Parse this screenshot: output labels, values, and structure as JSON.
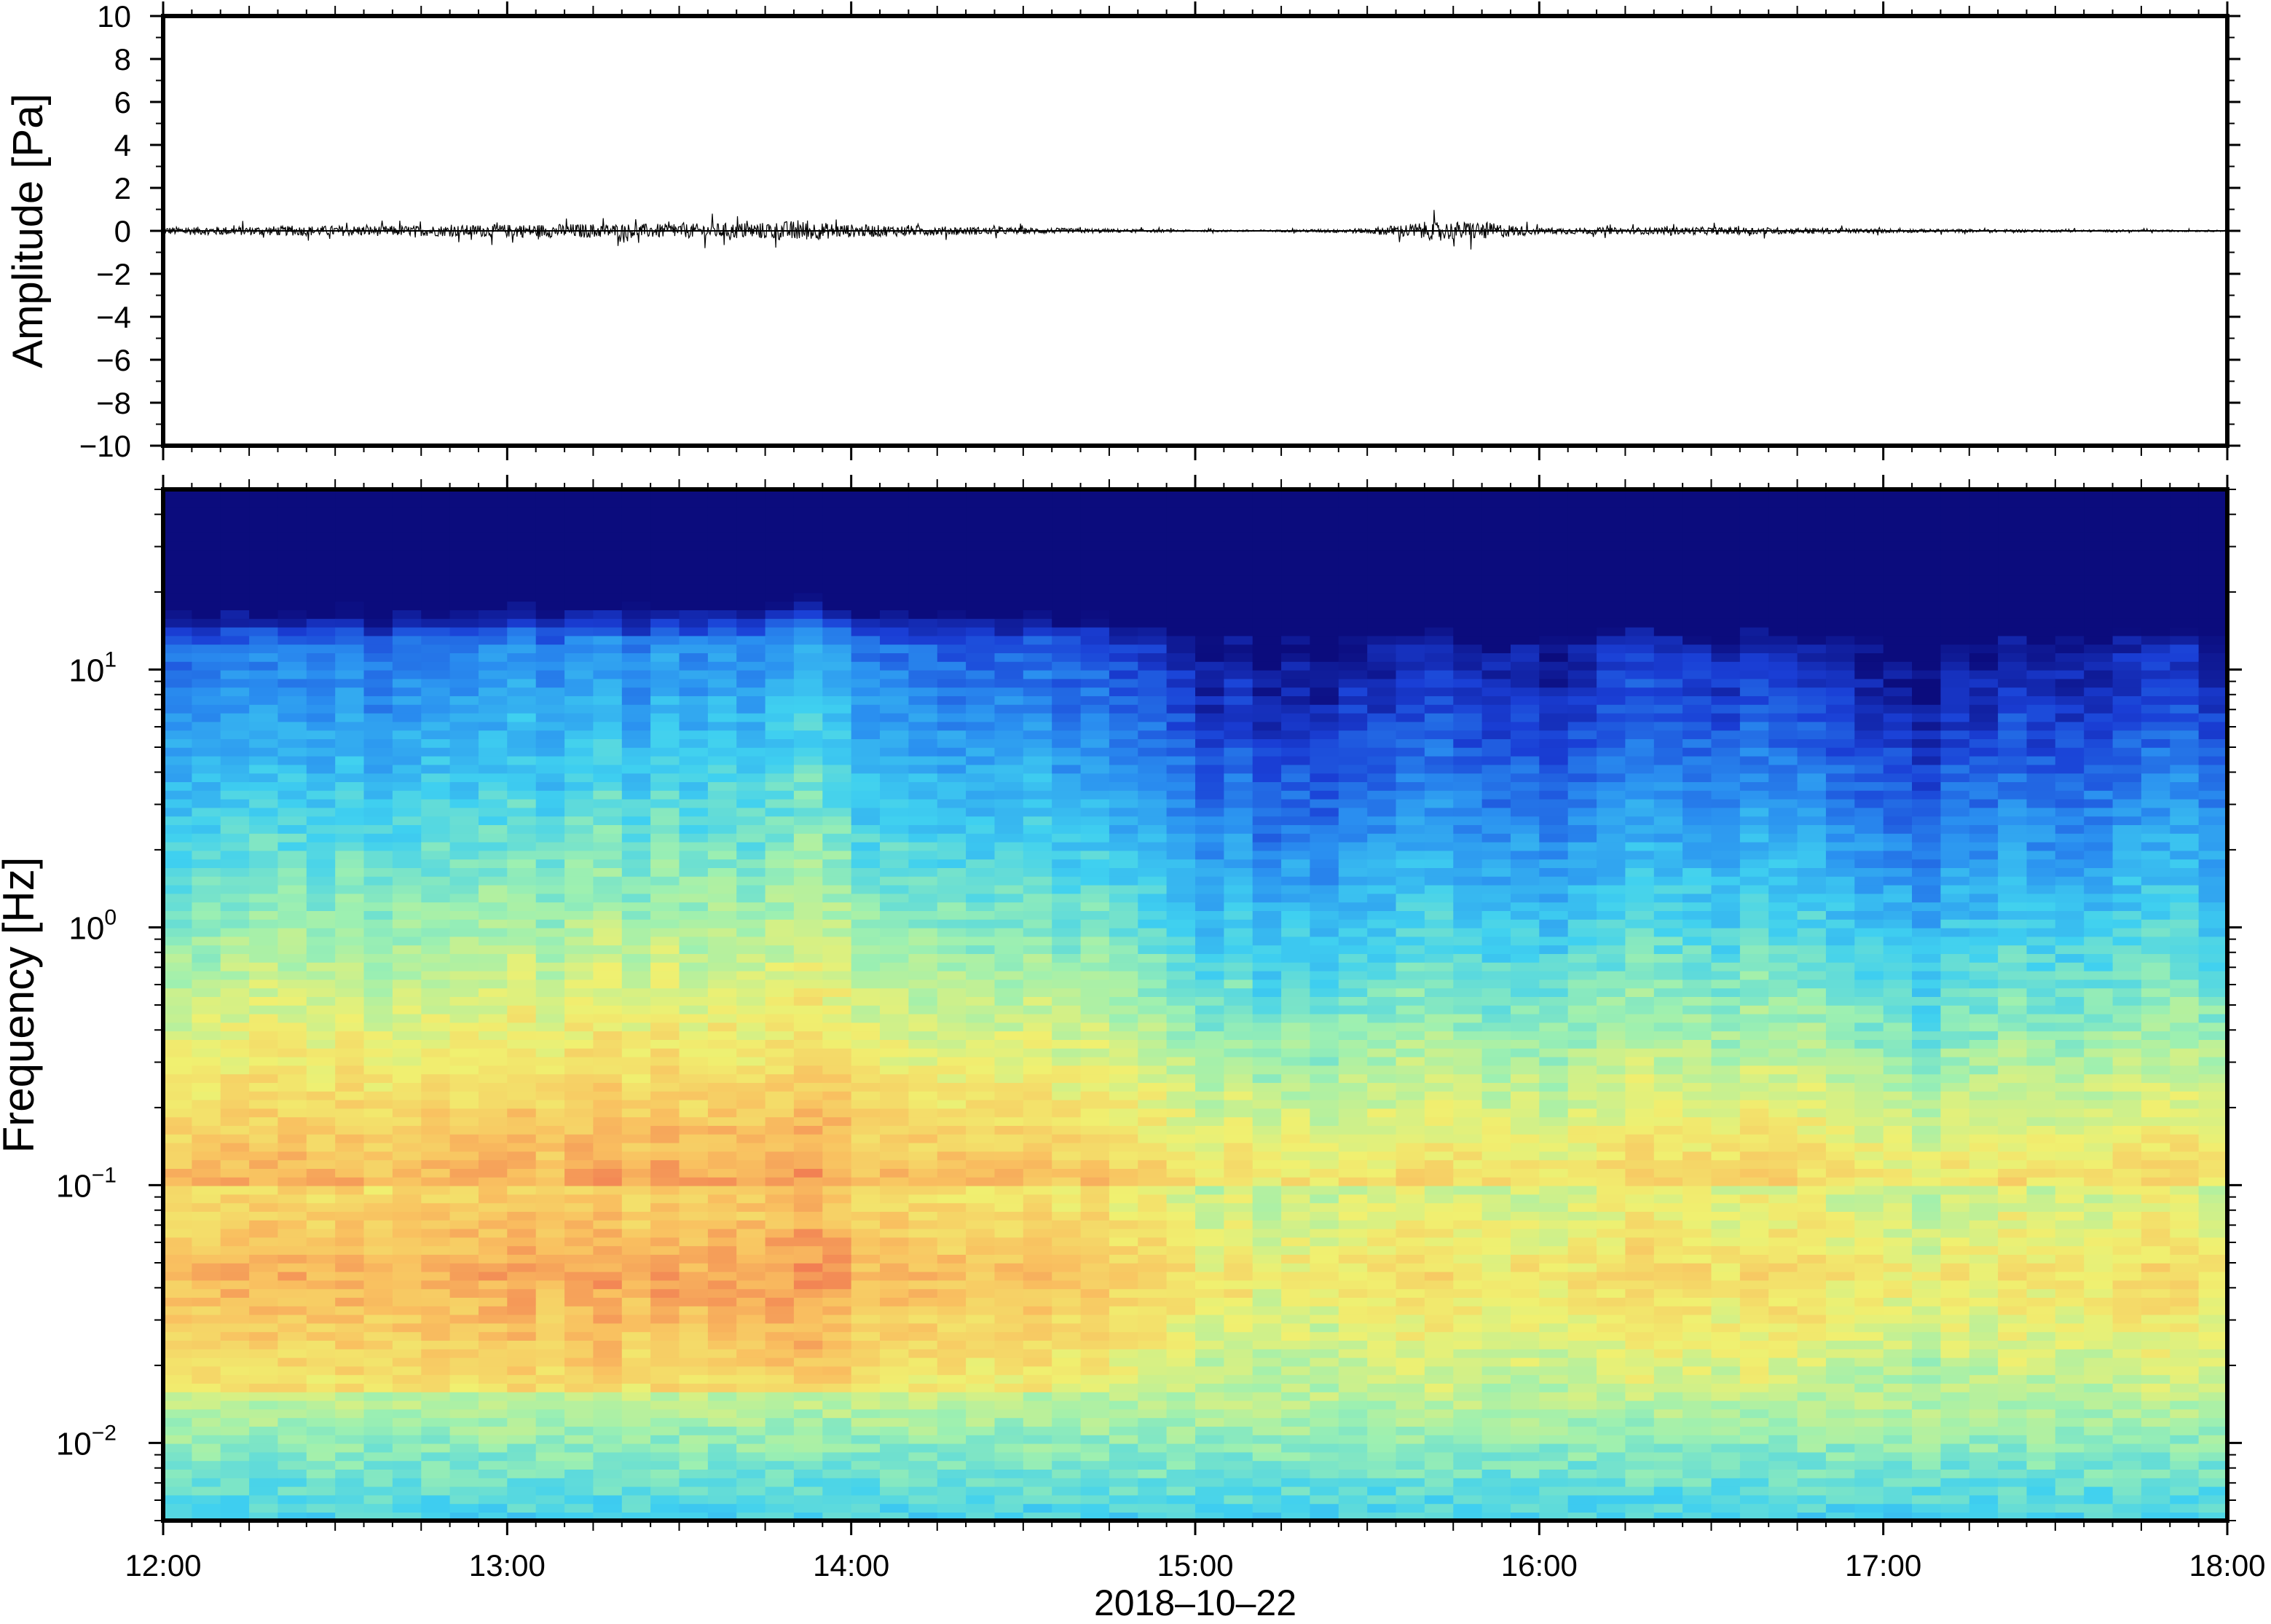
{
  "chart_data": [
    {
      "type": "line",
      "ylabel": "Amplitude [Pa]",
      "ylim": [
        -10,
        10
      ],
      "yticks": [
        "10",
        "8",
        "6",
        "4",
        "2",
        "0",
        "−2",
        "−4",
        "−6",
        "−8",
        "−10"
      ],
      "ytick_values": [
        10,
        8,
        6,
        4,
        2,
        0,
        -2,
        -4,
        -6,
        -8,
        -10
      ],
      "xlim": [
        "2018-10-22T12:00",
        "2018-10-22T18:00"
      ],
      "series": [
        {
          "values_description": "envelope (peak amplitude in Pa) of a noisy waveform centered on 0",
          "x": [
            "12:00",
            "12:15",
            "12:30",
            "12:45",
            "13:00",
            "13:15",
            "13:30",
            "13:45",
            "13:50",
            "14:00",
            "14:15",
            "14:30",
            "14:45",
            "15:00",
            "15:15",
            "15:30",
            "15:40",
            "15:50",
            "16:00",
            "16:15",
            "16:30",
            "16:45",
            "17:00",
            "17:30",
            "18:00"
          ],
          "values": [
            0.3,
            0.35,
            0.4,
            0.4,
            0.5,
            0.55,
            0.55,
            0.65,
            0.8,
            0.5,
            0.35,
            0.25,
            0.15,
            0.08,
            0.08,
            0.2,
            0.7,
            0.7,
            0.25,
            0.25,
            0.3,
            0.25,
            0.15,
            0.1,
            0.06
          ]
        }
      ],
      "line_color": "#000000",
      "grid": false
    },
    {
      "type": "heatmap",
      "ylabel": "Frequency [Hz]",
      "xlabel": "2018–10–22",
      "yscale": "log",
      "ylim": [
        0.005,
        50
      ],
      "yticks": [
        {
          "base": "10",
          "exp": "1",
          "value": 10
        },
        {
          "base": "10",
          "exp": "0",
          "value": 1
        },
        {
          "base": "10",
          "exp": "−1",
          "value": 0.1
        },
        {
          "base": "10",
          "exp": "−2",
          "value": 0.01
        }
      ],
      "xticks": [
        "12:00",
        "13:00",
        "14:00",
        "15:00",
        "16:00",
        "17:00",
        "18:00"
      ],
      "colormap": [
        "#0b0c7d",
        "#1a3fd6",
        "#2a8ff0",
        "#3fd0f0",
        "#9ef0b0",
        "#f0f070",
        "#f9c060",
        "#f07050",
        "#d83c3c"
      ],
      "time_columns": [
        "12:00",
        "12:20",
        "12:40",
        "13:00",
        "13:20",
        "13:40",
        "13:50",
        "14:00",
        "14:20",
        "14:40",
        "15:00",
        "15:10",
        "15:20",
        "15:30",
        "15:40",
        "15:50",
        "16:00",
        "16:10",
        "16:20",
        "16:30",
        "16:40",
        "16:50",
        "17:00",
        "17:05",
        "17:20",
        "17:40",
        "18:00"
      ],
      "activity_level": [
        0.55,
        0.6,
        0.62,
        0.65,
        0.68,
        0.7,
        0.78,
        0.66,
        0.6,
        0.55,
        0.3,
        0.28,
        0.2,
        0.32,
        0.42,
        0.36,
        0.26,
        0.4,
        0.44,
        0.38,
        0.36,
        0.34,
        0.26,
        0.18,
        0.3,
        0.34,
        0.36
      ],
      "grid": false
    }
  ]
}
